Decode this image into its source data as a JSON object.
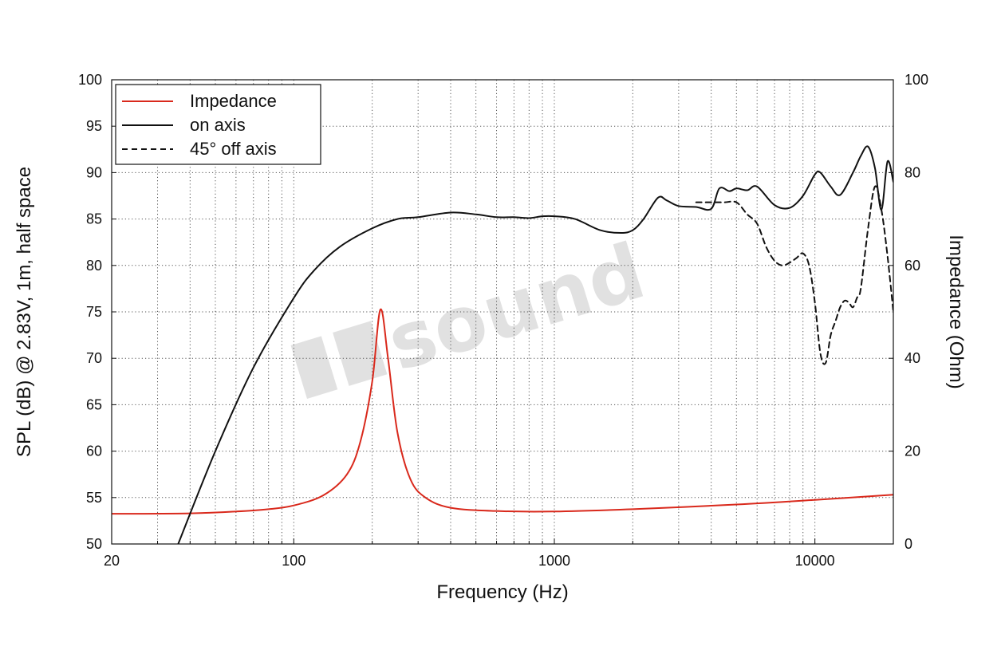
{
  "chart_data": {
    "type": "line",
    "x_scale": "log",
    "xlim": [
      20,
      20000
    ],
    "ylim": [
      50,
      100
    ],
    "y2lim": [
      0,
      100
    ],
    "xlabel": "Frequency (Hz)",
    "ylabel": "SPL (dB) @ 2.83V, 1m, half space",
    "y2label": "Impedance (Ohm)",
    "x_ticks": [
      20,
      100,
      1000,
      10000
    ],
    "x_tick_labels": [
      "20",
      "100",
      "1000",
      "10000"
    ],
    "y_ticks": [
      50,
      55,
      60,
      65,
      70,
      75,
      80,
      85,
      90,
      95,
      100
    ],
    "y_tick_labels": [
      "50",
      "55",
      "60",
      "65",
      "70",
      "75",
      "80",
      "85",
      "90",
      "95",
      "100"
    ],
    "y2_ticks": [
      0,
      20,
      40,
      60,
      80,
      100
    ],
    "y2_tick_labels": [
      "0",
      "20",
      "40",
      "60",
      "80",
      "100"
    ],
    "grid": true,
    "legend_position": "top-left",
    "watermark": "sound",
    "series": [
      {
        "name": "Impedance",
        "axis": "right",
        "color": "#d9291c",
        "dash": "solid",
        "x": [
          20,
          40,
          60,
          80,
          100,
          130,
          160,
          180,
          200,
          215,
          230,
          250,
          280,
          320,
          400,
          600,
          1000,
          2000,
          5000,
          10000,
          20000
        ],
        "y": [
          6.5,
          6.6,
          7.0,
          7.5,
          8.3,
          10.5,
          15.0,
          22.0,
          35.0,
          50.5,
          40.0,
          24.0,
          14.0,
          10.0,
          7.8,
          7.1,
          7.0,
          7.5,
          8.5,
          9.5,
          10.6
        ]
      },
      {
        "name": "on axis",
        "axis": "left",
        "color": "#111111",
        "dash": "solid",
        "x": [
          36,
          50,
          70,
          100,
          120,
          150,
          200,
          250,
          300,
          400,
          500,
          600,
          700,
          800,
          900,
          1000,
          1200,
          1500,
          1800,
          2000,
          2200,
          2500,
          2700,
          3000,
          3500,
          4000,
          4300,
          4700,
          5000,
          5500,
          6000,
          7000,
          8000,
          9000,
          10000,
          10500,
          11500,
          12500,
          14000,
          15000,
          16000,
          17000,
          18000,
          19000,
          20000
        ],
        "y": [
          50.0,
          60.0,
          69.0,
          76.5,
          79.5,
          82.0,
          84.0,
          85.0,
          85.2,
          85.7,
          85.5,
          85.2,
          85.2,
          85.1,
          85.3,
          85.3,
          85.0,
          83.8,
          83.5,
          83.8,
          85.0,
          87.3,
          87.0,
          86.4,
          86.3,
          86.1,
          88.3,
          88.0,
          88.3,
          88.1,
          88.5,
          86.5,
          86.2,
          87.5,
          89.8,
          90.0,
          88.5,
          87.6,
          90.0,
          91.8,
          92.8,
          90.5,
          86.0,
          91.2,
          89.0
        ]
      },
      {
        "name": "45° off axis",
        "axis": "left",
        "color": "#111111",
        "dash": "dashed",
        "x": [
          3500,
          4000,
          4500,
          5000,
          5500,
          6000,
          6500,
          7000,
          7500,
          8000,
          8500,
          9000,
          9500,
          10000,
          10500,
          11000,
          11500,
          12000,
          12500,
          13000,
          13500,
          14000,
          14500,
          15000,
          16000,
          17000,
          18000,
          19000,
          20000
        ],
        "y": [
          86.8,
          86.8,
          86.8,
          86.8,
          85.5,
          84.5,
          82.0,
          80.5,
          80.0,
          80.3,
          80.8,
          81.3,
          80.0,
          76.0,
          70.5,
          69.5,
          72.5,
          74.0,
          75.5,
          76.2,
          76.0,
          75.5,
          76.5,
          77.5,
          84.0,
          88.5,
          86.0,
          81.0,
          75.0
        ]
      }
    ]
  }
}
